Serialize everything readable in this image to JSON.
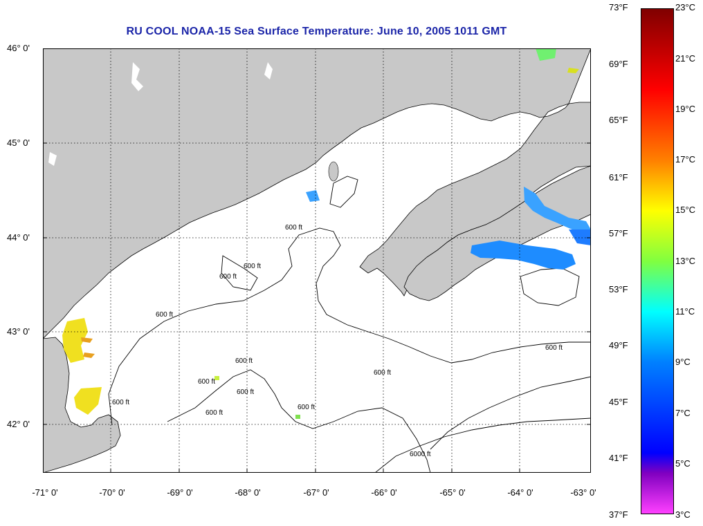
{
  "title": "RU COOL  NOAA-15  Sea Surface Temperature:  June 10, 2005 1011 GMT",
  "map": {
    "lat_labels": [
      "46° 0'",
      "45° 0'",
      "44° 0'",
      "43° 0'",
      "42° 0'"
    ],
    "lon_labels": [
      "-71° 0'",
      "-70° 0'",
      "-69° 0'",
      "-68° 0'",
      "-67° 0'",
      "-66° 0'",
      "-65° 0'",
      "-64° 0'",
      "-63° 0'"
    ],
    "lat_range": [
      41.5,
      46.05
    ],
    "lon_range": [
      -71.0,
      -63.0
    ],
    "contour_labels": [
      "600 ft",
      "600 ft",
      "600 ft",
      "600 ft",
      "600 ft",
      "600 ft",
      "600 ft",
      "600 ft",
      "600 ft",
      "600 ft",
      "600 ft",
      "600 ft",
      "6000 ft"
    ],
    "colors": {
      "land": "#c8c8c8",
      "ocean": "#ffffff",
      "grid": "#000000"
    }
  },
  "colorbar": {
    "fahrenheit_labels": [
      "73°F",
      "69°F",
      "65°F",
      "61°F",
      "57°F",
      "53°F",
      "49°F",
      "45°F",
      "41°F",
      "37°F"
    ],
    "celsius_labels": [
      "23°C",
      "21°C",
      "19°C",
      "17°C",
      "15°C",
      "13°C",
      "11°C",
      "9°C",
      "7°C",
      "5°C",
      "3°C"
    ],
    "range_c": [
      3,
      23
    ]
  }
}
